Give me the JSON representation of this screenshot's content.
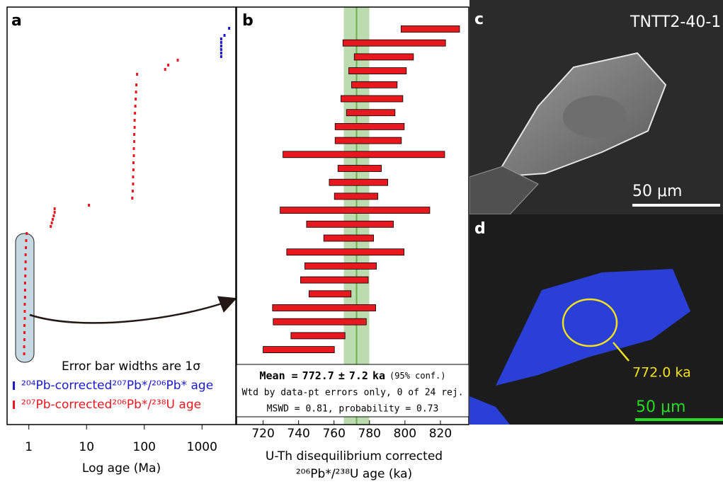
{
  "chart_data": [
    {
      "type": "scatter",
      "panel": "a",
      "xlabel": "Log age (Ma)",
      "log_x": true,
      "xlim": [
        0.42,
        3850
      ],
      "xticks": [
        1,
        10,
        100,
        1000
      ],
      "ylim": [
        0,
        118
      ],
      "note": "Error bar widths are 1σ",
      "series": [
        {
          "name": "²⁰⁴Pb-corrected²⁰⁷Pb*/²⁰⁶Pb* age",
          "color": "#1a1acc",
          "x": [
            2150,
            2150,
            2150,
            2150,
            2150,
            2150,
            2450,
            2950
          ],
          "y": [
            104,
            105,
            106,
            107,
            108,
            109,
            110,
            112
          ]
        },
        {
          "name": "²⁰⁷Pb-corrected²⁰⁶Pb*/²³⁸U age",
          "color": "#e8191e",
          "x": [
            0.83,
            0.83,
            0.84,
            0.84,
            0.84,
            0.85,
            0.85,
            0.85,
            0.86,
            0.86,
            0.86,
            0.87,
            0.87,
            0.88,
            0.88,
            0.89,
            0.9,
            0.92,
            2.4,
            2.5,
            2.6,
            2.7,
            2.8,
            2.8,
            11,
            62,
            63,
            64,
            64,
            65,
            65,
            66,
            66,
            67,
            67,
            68,
            68,
            69,
            70,
            71,
            72,
            73,
            75,
            230,
            260,
            380
          ],
          "y": [
            20,
            22,
            24,
            26,
            28,
            30,
            32,
            34,
            36,
            38,
            40,
            42,
            44,
            46,
            48,
            50,
            52,
            54,
            56,
            57,
            58,
            59,
            60,
            61,
            62,
            64,
            66,
            68,
            70,
            72,
            74,
            76,
            78,
            80,
            82,
            84,
            86,
            88,
            90,
            92,
            94,
            96,
            99,
            100.4,
            101.6,
            103
          ]
        }
      ]
    },
    {
      "type": "ranges",
      "panel": "b",
      "xlabel": "U-Th disequilibrium corrected",
      "xlabel2": "²⁰⁶Pb*/²³⁸U age (ka)",
      "xlim": [
        705,
        836
      ],
      "xticks": [
        720,
        740,
        760,
        780,
        800,
        820
      ],
      "color": "#e8191e",
      "low": [
        797.8,
        765,
        771.4,
        768.3,
        769.9,
        763.9,
        767,
        760.6,
        760.6,
        731.2,
        762.2,
        757.3,
        760.2,
        729.6,
        744.5,
        754.2,
        733.3,
        743.5,
        741.1,
        745.9,
        725.3,
        725.7,
        735.7,
        720
      ],
      "high": [
        830.8,
        822.9,
        804.8,
        800.8,
        795.6,
        798.8,
        794.4,
        799.6,
        798,
        822.4,
        786.7,
        790.3,
        784.7,
        814,
        793.5,
        782.3,
        799.5,
        783.9,
        779.3,
        769.6,
        783.5,
        778.2,
        766.2,
        760.2
      ],
      "mean_label": "Mean =",
      "mean": 772.7,
      "pm": "±",
      "mean_err": 7.2,
      "unit": "ka",
      "conf": "(95% conf.)",
      "line2": "Wtd by data-pt errors only, 0 of 24 rej.",
      "line3": "MSWD = 0.81, probability = 0.73",
      "mean_color": "#6ab04c"
    }
  ],
  "images": [
    {
      "panel": "c",
      "sample": "TNTT2-40-1",
      "scale": "50 μm"
    },
    {
      "panel": "d",
      "scale": "50 μm",
      "annotation": "772.0 ka"
    }
  ]
}
